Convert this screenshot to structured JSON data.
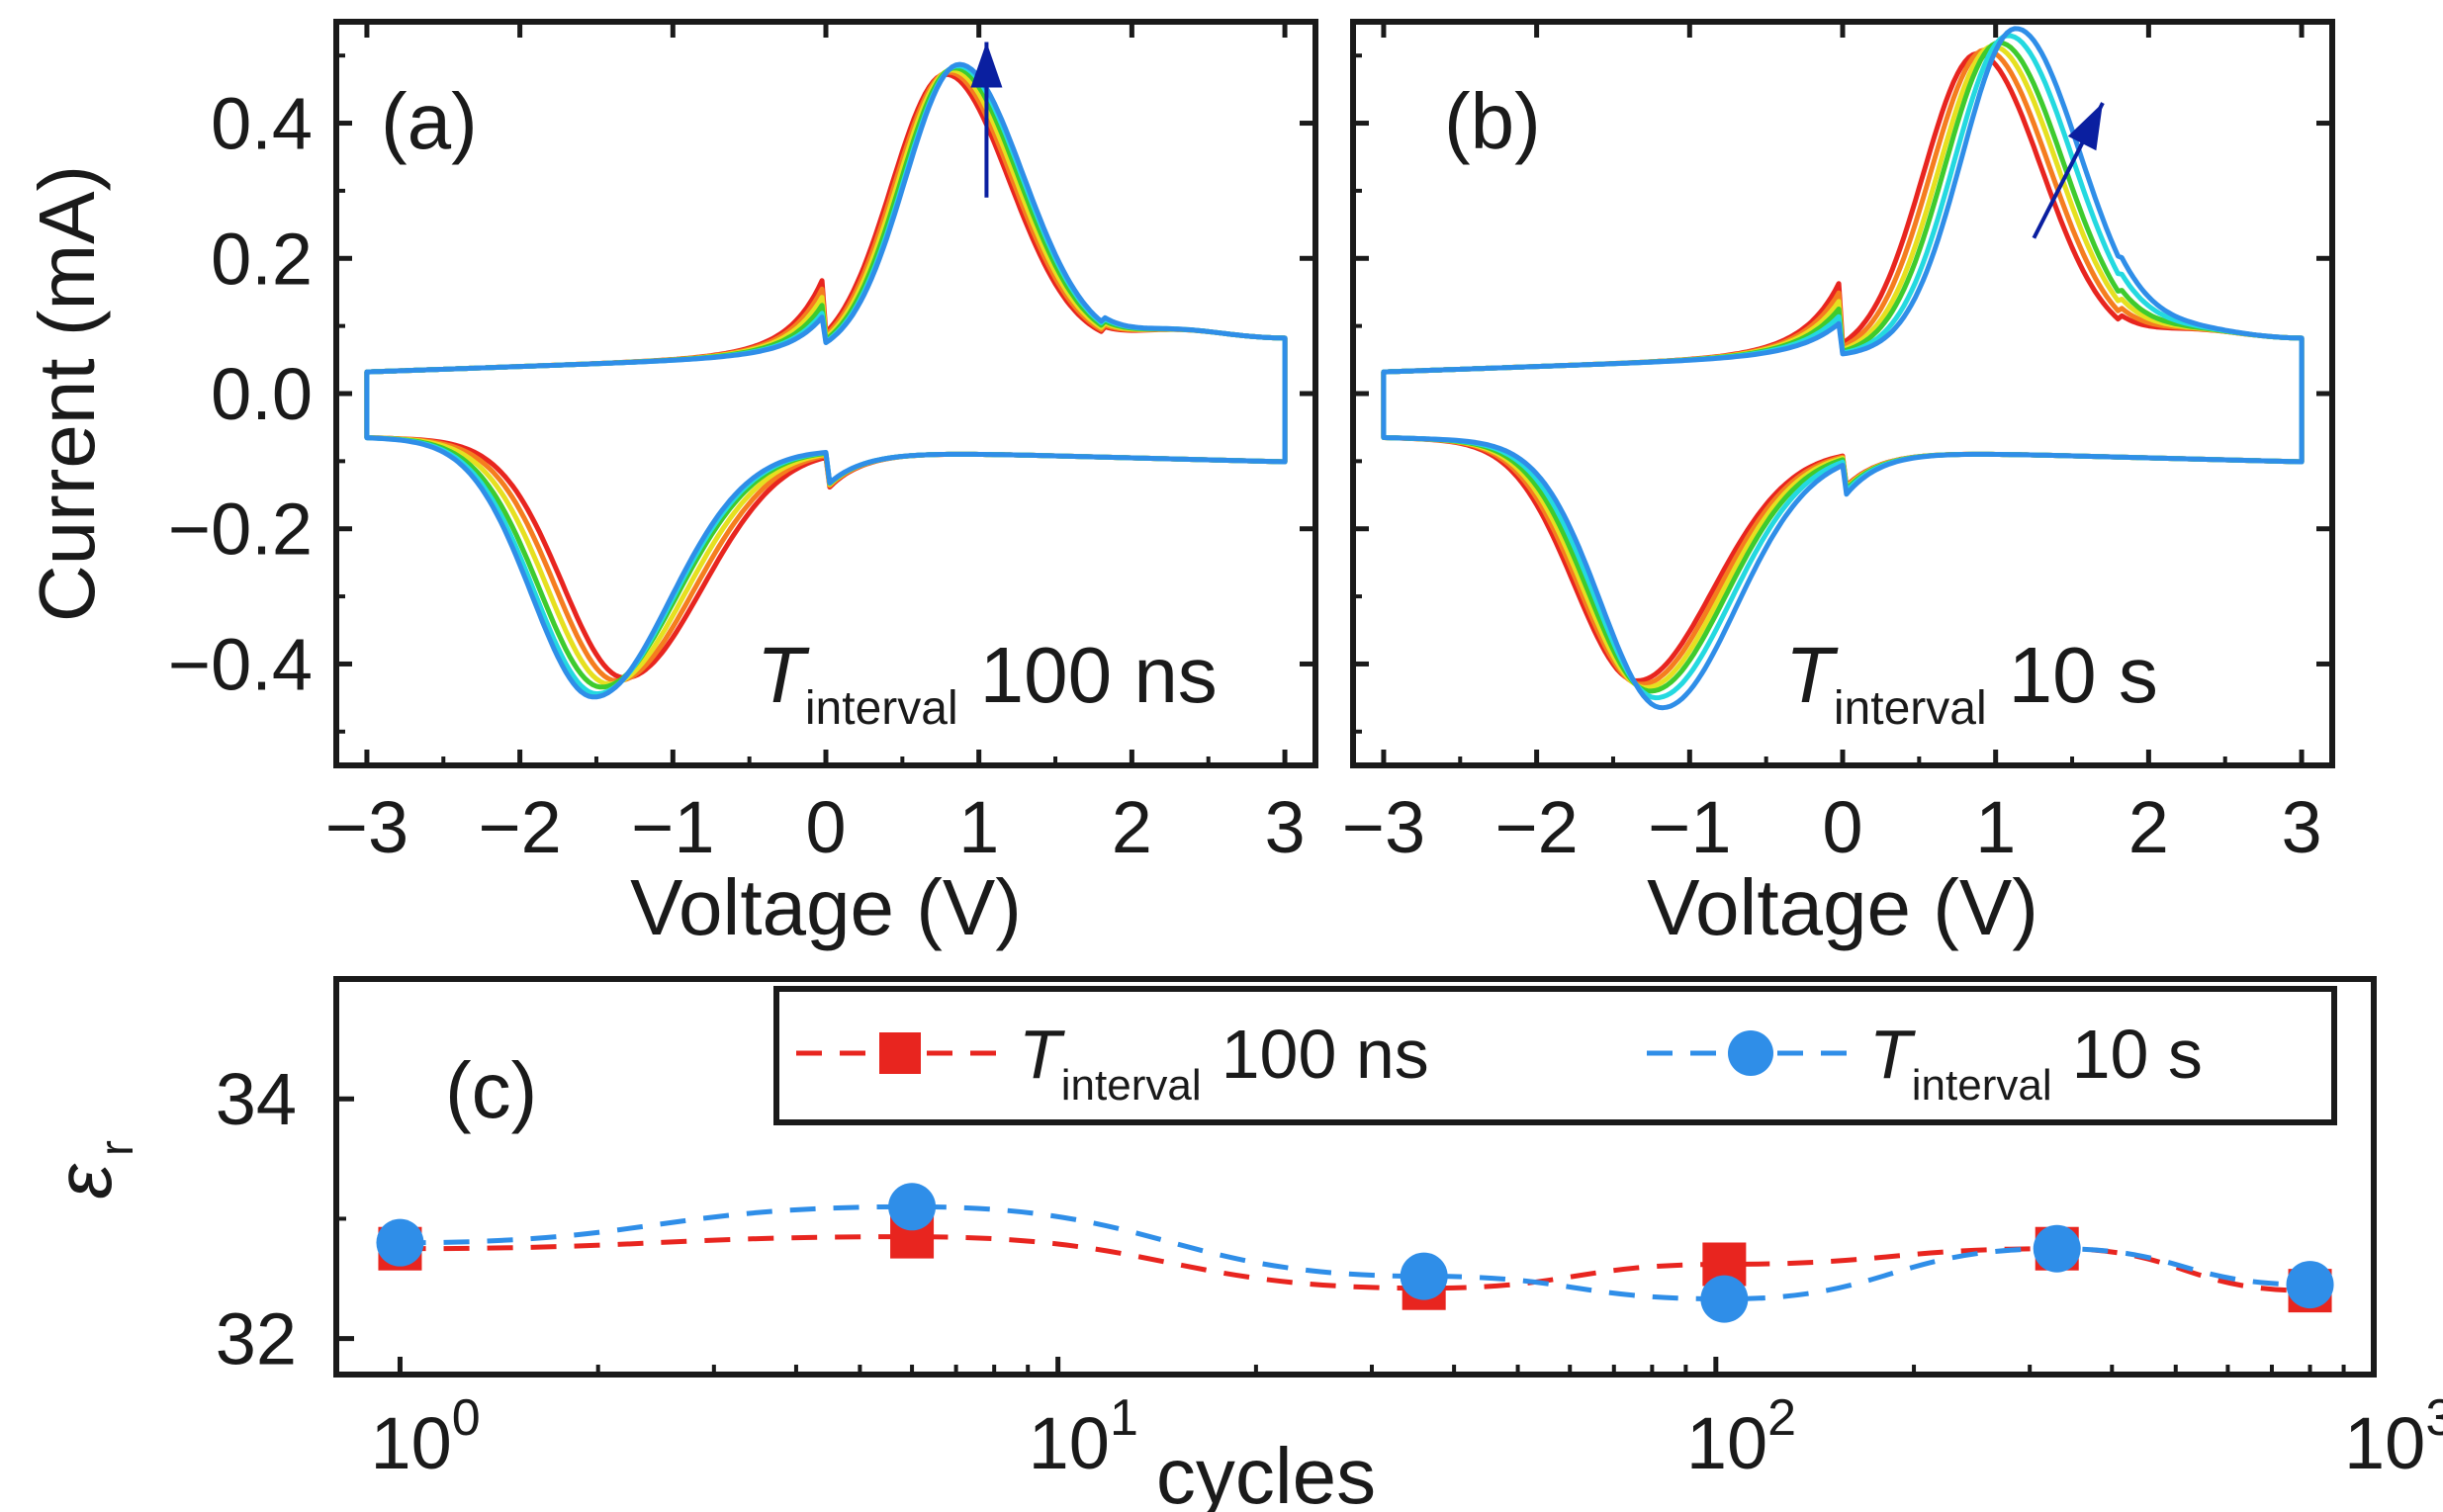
{
  "chart_data": [
    {
      "id": "a",
      "type": "line",
      "panel_label": "(a)",
      "xlabel": "Voltage (V)",
      "ylabel": "Current (mA)",
      "xlim": [
        -3.2,
        3.2
      ],
      "ylim": [
        -0.55,
        0.55
      ],
      "xticks": [
        -3,
        -2,
        -1,
        0,
        1,
        2,
        3
      ],
      "xtick_labels": [
        "−3",
        "−2",
        "−1",
        "0",
        "1",
        "2",
        "3"
      ],
      "yticks": [
        -0.4,
        -0.2,
        0.0,
        0.2,
        0.4
      ],
      "ytick_labels": [
        "−0.4",
        "−0.2",
        "0.0",
        "0.2",
        "0.4"
      ],
      "annotation": {
        "italic": "T",
        "sub": "interval",
        "rest": "100 ns"
      },
      "arrow": {
        "direction": "up",
        "color": "#0a1fa0",
        "from": [
          1.05,
          0.29
        ],
        "to": [
          1.05,
          0.52
        ]
      },
      "series": [
        {
          "name": "cycle 1",
          "color": "#e8251f",
          "peak_pos": [
            0.78,
            0.46
          ],
          "peak_neg": [
            -1.32,
            -0.405
          ],
          "shoulder_pos": 0.09,
          "shoulder_neg": -0.28
        },
        {
          "name": "cycle 2",
          "color": "#f57d1f",
          "peak_pos": [
            0.8,
            0.463
          ],
          "peak_neg": [
            -1.37,
            -0.41
          ],
          "shoulder_pos": 0.08,
          "shoulder_neg": -0.27
        },
        {
          "name": "cycle 3",
          "color": "#e6e020",
          "peak_pos": [
            0.82,
            0.466
          ],
          "peak_neg": [
            -1.42,
            -0.415
          ],
          "shoulder_pos": 0.07,
          "shoulder_neg": -0.26
        },
        {
          "name": "cycle 4",
          "color": "#3ecb2e",
          "peak_pos": [
            0.84,
            0.469
          ],
          "peak_neg": [
            -1.47,
            -0.42
          ],
          "shoulder_pos": 0.06,
          "shoulder_neg": -0.25
        },
        {
          "name": "cycle 5",
          "color": "#24d9e0",
          "peak_pos": [
            0.86,
            0.472
          ],
          "peak_neg": [
            -1.5,
            -0.43
          ],
          "shoulder_pos": 0.05,
          "shoulder_neg": -0.24
        },
        {
          "name": "cycle 6",
          "color": "#2f8ee8",
          "peak_pos": [
            0.87,
            0.474
          ],
          "peak_neg": [
            -1.52,
            -0.435
          ],
          "shoulder_pos": 0.045,
          "shoulder_neg": -0.235
        }
      ]
    },
    {
      "id": "b",
      "type": "line",
      "panel_label": "(b)",
      "xlabel": "Voltage (V)",
      "ylabel": "",
      "xlim": [
        -3.2,
        3.2
      ],
      "ylim": [
        -0.55,
        0.55
      ],
      "xticks": [
        -3,
        -2,
        -1,
        0,
        1,
        2,
        3
      ],
      "xtick_labels": [
        "−3",
        "−2",
        "−1",
        "0",
        "1",
        "2",
        "3"
      ],
      "yticks": [
        -0.4,
        -0.2,
        0.0,
        0.2,
        0.4
      ],
      "annotation": {
        "italic": "T",
        "sub": "interval",
        "rest": "10 s"
      },
      "arrow": {
        "direction": "up-right",
        "color": "#0a1fa0",
        "from": [
          1.25,
          0.23
        ],
        "to": [
          1.7,
          0.43
        ]
      },
      "series": [
        {
          "name": "cycle 1",
          "color": "#e8251f",
          "peak_pos": [
            0.88,
            0.49
          ],
          "peak_neg": [
            -1.35,
            -0.41
          ],
          "shoulder_pos": 0.1,
          "shoulder_neg": -0.22
        },
        {
          "name": "cycle 2",
          "color": "#f57d1f",
          "peak_pos": [
            0.93,
            0.495
          ],
          "peak_neg": [
            -1.32,
            -0.415
          ],
          "shoulder_pos": 0.09,
          "shoulder_neg": -0.2
        },
        {
          "name": "cycle 3",
          "color": "#e6e020",
          "peak_pos": [
            0.98,
            0.5
          ],
          "peak_neg": [
            -1.29,
            -0.42
          ],
          "shoulder_pos": 0.08,
          "shoulder_neg": -0.18
        },
        {
          "name": "cycle 4",
          "color": "#3ecb2e",
          "peak_pos": [
            1.02,
            0.505
          ],
          "peak_neg": [
            -1.26,
            -0.425
          ],
          "shoulder_pos": 0.07,
          "shoulder_neg": -0.16
        },
        {
          "name": "cycle 5",
          "color": "#24d9e0",
          "peak_pos": [
            1.08,
            0.515
          ],
          "peak_neg": [
            -1.22,
            -0.435
          ],
          "shoulder_pos": 0.06,
          "shoulder_neg": -0.13
        },
        {
          "name": "cycle 6",
          "color": "#2f8ee8",
          "peak_pos": [
            1.13,
            0.525
          ],
          "peak_neg": [
            -1.18,
            -0.45
          ],
          "shoulder_pos": 0.05,
          "shoulder_neg": -0.11
        }
      ]
    },
    {
      "id": "c",
      "type": "line",
      "panel_label": "(c)",
      "xlabel": "cycles",
      "ylabel": "εr",
      "ylabel_main": "ε",
      "ylabel_sub": "r",
      "xscale": "log",
      "xlim": [
        0.8,
        1000
      ],
      "ylim": [
        31.7,
        35
      ],
      "xticks": [
        1,
        10,
        100,
        1000
      ],
      "xtick_base": "10",
      "xtick_exponents": [
        "0",
        "1",
        "2",
        "3"
      ],
      "yticks": [
        32,
        34
      ],
      "ytick_labels": [
        "32",
        "34"
      ],
      "legend_position": "top-right",
      "series": [
        {
          "name": "T interval 100 ns",
          "legend_italic": "T",
          "legend_sub": "interval",
          "legend_rest": "100 ns",
          "color": "#e8251f",
          "marker": "square",
          "x": [
            1,
            6,
            36,
            103,
            330,
            800
          ],
          "y": [
            32.75,
            32.85,
            32.42,
            32.62,
            32.75,
            32.4
          ]
        },
        {
          "name": "T interval 10 s",
          "legend_italic": "T",
          "legend_sub": "interval",
          "legend_rest": "10 s",
          "color": "#2f8ee8",
          "marker": "circle",
          "x": [
            1,
            6,
            36,
            103,
            330,
            800
          ],
          "y": [
            32.8,
            33.1,
            32.52,
            32.33,
            32.75,
            32.45
          ]
        }
      ]
    }
  ]
}
